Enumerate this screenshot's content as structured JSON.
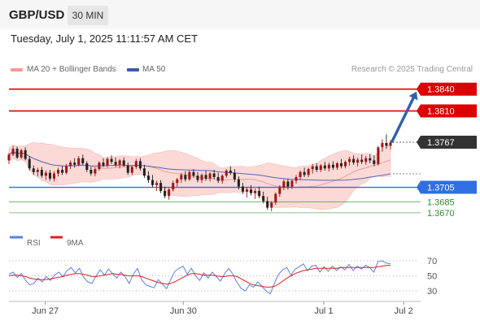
{
  "header": {
    "symbol": "GBP/USD",
    "timeframe": "30 MIN"
  },
  "timestamp": "Tuesday, July 1, 2025 11:11:57 AM CET",
  "legend": {
    "ma20_label": "MA 20 + Bollinger Bands",
    "ma50_label": "MA 50",
    "rsi_label": "RSI",
    "ma9_label": "9MA"
  },
  "credit": "Research © 2025 Trading Central",
  "colors": {
    "resistance": "#dd0000",
    "support_primary": "#2f6fe0",
    "support_secondary": "#3a9a3a",
    "arrow": "#2f62a8",
    "candle_up": "#9e1515",
    "candle_down": "#222222",
    "bollinger_fill": "#fbd9d6",
    "ma20": "#e8a29c",
    "ma50": "#5567b8",
    "rsi": "#5b7fe0",
    "rsi_ma": "#dd2222"
  },
  "chart_data": {
    "type": "candlestick",
    "price_axis": {
      "min": 1.3633,
      "max": 1.3862
    },
    "x_ticks": [
      "Jun 27",
      "Jun 30",
      "Jul 1",
      "Jul 2"
    ],
    "levels": [
      {
        "label": "1.3840",
        "value": 1.384,
        "kind": "resistance",
        "style": "box"
      },
      {
        "label": "1.3810",
        "value": 1.381,
        "kind": "resistance",
        "style": "box"
      },
      {
        "label": "1.3767",
        "value": 1.3767,
        "kind": "last_price",
        "style": "box"
      },
      {
        "label": "1.3705",
        "value": 1.3705,
        "kind": "support",
        "style": "box"
      },
      {
        "label": "1.3685",
        "value": 1.3685,
        "kind": "support",
        "style": "text"
      },
      {
        "label": "1.3670",
        "value": 1.367,
        "kind": "support",
        "style": "text"
      }
    ],
    "projection": {
      "from": 1.3767,
      "to": 1.384,
      "direction": "up"
    },
    "candles": [
      [
        1.3742,
        1.3752,
        1.3737,
        1.375
      ],
      [
        1.375,
        1.3762,
        1.3748,
        1.3758
      ],
      [
        1.3758,
        1.3761,
        1.3744,
        1.3746
      ],
      [
        1.3746,
        1.3758,
        1.3744,
        1.3756
      ],
      [
        1.3756,
        1.376,
        1.3742,
        1.3744
      ],
      [
        1.3744,
        1.3748,
        1.3728,
        1.3731
      ],
      [
        1.3731,
        1.3735,
        1.3722,
        1.3726
      ],
      [
        1.3726,
        1.3732,
        1.372,
        1.3729
      ],
      [
        1.3729,
        1.3733,
        1.3718,
        1.3721
      ],
      [
        1.3721,
        1.3728,
        1.3715,
        1.3725
      ],
      [
        1.3725,
        1.3729,
        1.3714,
        1.3717
      ],
      [
        1.3717,
        1.3727,
        1.3713,
        1.3724
      ],
      [
        1.3724,
        1.3732,
        1.372,
        1.3729
      ],
      [
        1.3729,
        1.3734,
        1.3722,
        1.3725
      ],
      [
        1.3725,
        1.3737,
        1.3723,
        1.3734
      ],
      [
        1.3734,
        1.3742,
        1.373,
        1.3739
      ],
      [
        1.3739,
        1.3745,
        1.3732,
        1.3736
      ],
      [
        1.3736,
        1.3748,
        1.3734,
        1.3745
      ],
      [
        1.3745,
        1.375,
        1.3736,
        1.3738
      ],
      [
        1.3738,
        1.3741,
        1.3726,
        1.3729
      ],
      [
        1.3729,
        1.3733,
        1.3721,
        1.3724
      ],
      [
        1.3724,
        1.3732,
        1.372,
        1.373
      ],
      [
        1.373,
        1.3741,
        1.3728,
        1.3739
      ],
      [
        1.3739,
        1.3745,
        1.3733,
        1.3735
      ],
      [
        1.3735,
        1.3747,
        1.3732,
        1.3744
      ],
      [
        1.3744,
        1.3749,
        1.3737,
        1.374
      ],
      [
        1.374,
        1.3746,
        1.3733,
        1.3736
      ],
      [
        1.3736,
        1.3744,
        1.3731,
        1.3742
      ],
      [
        1.3742,
        1.3746,
        1.3733,
        1.3735
      ],
      [
        1.3735,
        1.3739,
        1.3722,
        1.3725
      ],
      [
        1.3725,
        1.3735,
        1.3722,
        1.3733
      ],
      [
        1.3733,
        1.3744,
        1.373,
        1.3741
      ],
      [
        1.3741,
        1.3745,
        1.3728,
        1.3731
      ],
      [
        1.3731,
        1.3736,
        1.3718,
        1.3721
      ],
      [
        1.3721,
        1.3727,
        1.3711,
        1.3715
      ],
      [
        1.3715,
        1.3722,
        1.3705,
        1.3708
      ],
      [
        1.3708,
        1.3714,
        1.37,
        1.3711
      ],
      [
        1.3711,
        1.3715,
        1.3697,
        1.37
      ],
      [
        1.37,
        1.3706,
        1.369,
        1.3693
      ],
      [
        1.3693,
        1.3704,
        1.3688,
        1.3702
      ],
      [
        1.3702,
        1.3714,
        1.3699,
        1.3711
      ],
      [
        1.3711,
        1.3718,
        1.3706,
        1.3716
      ],
      [
        1.3716,
        1.3725,
        1.3711,
        1.3722
      ],
      [
        1.3722,
        1.3727,
        1.3713,
        1.3716
      ],
      [
        1.3716,
        1.3728,
        1.3714,
        1.3726
      ],
      [
        1.3726,
        1.373,
        1.3718,
        1.3721
      ],
      [
        1.3721,
        1.3726,
        1.3712,
        1.3715
      ],
      [
        1.3715,
        1.3724,
        1.3711,
        1.3722
      ],
      [
        1.3722,
        1.3728,
        1.3714,
        1.3717
      ],
      [
        1.3717,
        1.3726,
        1.3713,
        1.3724
      ],
      [
        1.3724,
        1.3729,
        1.3716,
        1.3719
      ],
      [
        1.3719,
        1.3725,
        1.3711,
        1.3714
      ],
      [
        1.3714,
        1.3723,
        1.371,
        1.3721
      ],
      [
        1.3721,
        1.373,
        1.3718,
        1.3728
      ],
      [
        1.3728,
        1.3734,
        1.3722,
        1.3725
      ],
      [
        1.3725,
        1.373,
        1.3712,
        1.3716
      ],
      [
        1.3716,
        1.372,
        1.3702,
        1.3706
      ],
      [
        1.3706,
        1.3711,
        1.3696,
        1.3699
      ],
      [
        1.3699,
        1.3705,
        1.3691,
        1.3702
      ],
      [
        1.3702,
        1.3708,
        1.3694,
        1.3697
      ],
      [
        1.3697,
        1.3703,
        1.3689,
        1.37
      ],
      [
        1.37,
        1.3706,
        1.369,
        1.3693
      ],
      [
        1.3693,
        1.3699,
        1.3683,
        1.3686
      ],
      [
        1.3686,
        1.3692,
        1.3674,
        1.3677
      ],
      [
        1.3677,
        1.3686,
        1.3672,
        1.3684
      ],
      [
        1.3684,
        1.3698,
        1.3681,
        1.3696
      ],
      [
        1.3696,
        1.3708,
        1.3692,
        1.3705
      ],
      [
        1.3705,
        1.3716,
        1.3701,
        1.3713
      ],
      [
        1.3713,
        1.3717,
        1.3702,
        1.3706
      ],
      [
        1.3706,
        1.3716,
        1.3703,
        1.3714
      ],
      [
        1.3714,
        1.3722,
        1.371,
        1.3719
      ],
      [
        1.3719,
        1.3728,
        1.3715,
        1.3726
      ],
      [
        1.3726,
        1.3732,
        1.3719,
        1.3722
      ],
      [
        1.3722,
        1.3732,
        1.3719,
        1.373
      ],
      [
        1.373,
        1.3737,
        1.3724,
        1.3734
      ],
      [
        1.3734,
        1.3738,
        1.3726,
        1.3729
      ],
      [
        1.3729,
        1.3737,
        1.3726,
        1.3735
      ],
      [
        1.3735,
        1.374,
        1.3728,
        1.3731
      ],
      [
        1.3731,
        1.3739,
        1.3727,
        1.3736
      ],
      [
        1.3736,
        1.3741,
        1.3729,
        1.3732
      ],
      [
        1.3732,
        1.374,
        1.3729,
        1.3738
      ],
      [
        1.3738,
        1.3744,
        1.3731,
        1.3734
      ],
      [
        1.3734,
        1.3742,
        1.3731,
        1.374
      ],
      [
        1.374,
        1.3747,
        1.3735,
        1.3744
      ],
      [
        1.3744,
        1.3749,
        1.3736,
        1.3739
      ],
      [
        1.3739,
        1.3746,
        1.3734,
        1.3743
      ],
      [
        1.3743,
        1.375,
        1.3737,
        1.374
      ],
      [
        1.374,
        1.3748,
        1.3736,
        1.3745
      ],
      [
        1.3745,
        1.3751,
        1.3738,
        1.3742
      ],
      [
        1.3742,
        1.3749,
        1.3734,
        1.3737
      ],
      [
        1.3737,
        1.3762,
        1.3735,
        1.376
      ],
      [
        1.376,
        1.3771,
        1.3754,
        1.3766
      ],
      [
        1.3766,
        1.3778,
        1.3758,
        1.3762
      ],
      [
        1.3762,
        1.377,
        1.3757,
        1.3767
      ]
    ]
  },
  "rsi_panel": {
    "levels": [
      "70",
      "50",
      "30"
    ],
    "rsi": [
      52,
      55,
      48,
      53,
      44,
      38,
      40,
      47,
      42,
      49,
      44,
      51,
      55,
      49,
      57,
      61,
      54,
      60,
      48,
      42,
      40,
      50,
      58,
      51,
      59,
      53,
      47,
      55,
      49,
      40,
      52,
      60,
      45,
      38,
      36,
      34,
      45,
      39,
      33,
      45,
      56,
      60,
      63,
      52,
      60,
      50,
      44,
      54,
      47,
      55,
      49,
      43,
      53,
      60,
      52,
      41,
      33,
      30,
      38,
      35,
      42,
      36,
      30,
      26,
      40,
      52,
      58,
      61,
      51,
      59,
      62,
      66,
      57,
      63,
      64,
      55,
      62,
      56,
      63,
      57,
      62,
      58,
      65,
      57,
      63,
      59,
      64,
      61,
      55,
      69,
      70,
      67,
      66
    ],
    "rsi_ma": [
      50,
      51,
      51,
      50,
      49,
      47,
      46,
      45,
      45,
      45,
      46,
      47,
      48,
      49,
      51,
      52,
      53,
      53,
      52,
      51,
      49,
      49,
      50,
      51,
      52,
      53,
      52,
      52,
      51,
      50,
      50,
      50,
      49,
      47,
      45,
      43,
      41,
      40,
      39,
      40,
      42,
      45,
      48,
      51,
      53,
      53,
      52,
      51,
      51,
      51,
      50,
      49,
      49,
      50,
      50,
      49,
      46,
      43,
      40,
      38,
      37,
      36,
      35,
      35,
      36,
      39,
      43,
      47,
      50,
      53,
      55,
      57,
      58,
      59,
      60,
      60,
      60,
      60,
      60,
      60,
      61,
      61,
      61,
      61,
      61,
      61,
      61,
      61,
      61,
      62,
      63,
      64,
      64
    ]
  }
}
